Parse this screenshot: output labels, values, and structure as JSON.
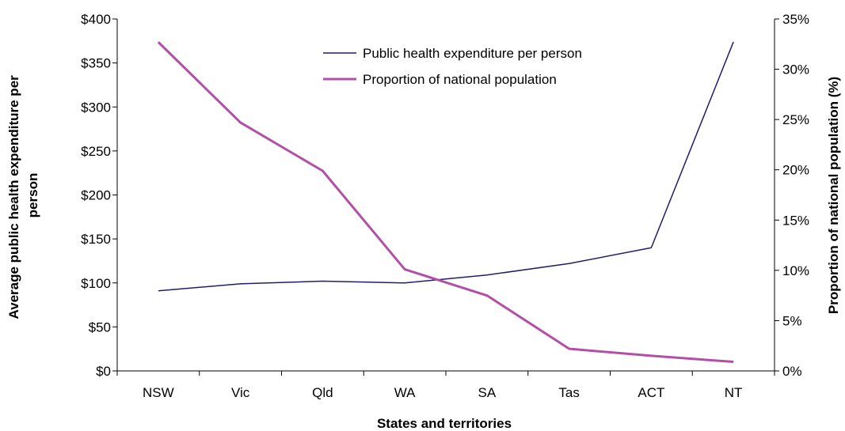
{
  "chart_data": {
    "type": "line",
    "title": "",
    "categories": [
      "NSW",
      "Vic",
      "Qld",
      "WA",
      "SA",
      "Tas",
      "ACT",
      "NT"
    ],
    "xlabel": "States and territories",
    "ylabel_lines": [
      "Average public health expenditure per",
      "person"
    ],
    "y2label": "Proportion of national population (%)",
    "ylim": [
      0,
      400
    ],
    "yticks": [
      0,
      50,
      100,
      150,
      200,
      250,
      300,
      350,
      400
    ],
    "ytick_labels": [
      "$0",
      "$50",
      "$100",
      "$150",
      "$200",
      "$250",
      "$300",
      "$350",
      "$400"
    ],
    "y2lim": [
      0,
      35
    ],
    "y2ticks": [
      0,
      5,
      10,
      15,
      20,
      25,
      30,
      35
    ],
    "y2tick_labels": [
      "0%",
      "5%",
      "10%",
      "15%",
      "20%",
      "25%",
      "30%",
      "35%"
    ],
    "grid": false,
    "legend_position": "top-center",
    "series": [
      {
        "name": "Public health expenditure per person",
        "axis": "left",
        "color": "#1f1f6e",
        "values": [
          91,
          99,
          102,
          100,
          109,
          122,
          140,
          374
        ]
      },
      {
        "name": "Proportion of national population",
        "axis": "right",
        "color": "#b44fa8",
        "values": [
          32.7,
          24.7,
          19.9,
          10.1,
          7.5,
          2.2,
          1.5,
          0.9
        ]
      }
    ]
  }
}
